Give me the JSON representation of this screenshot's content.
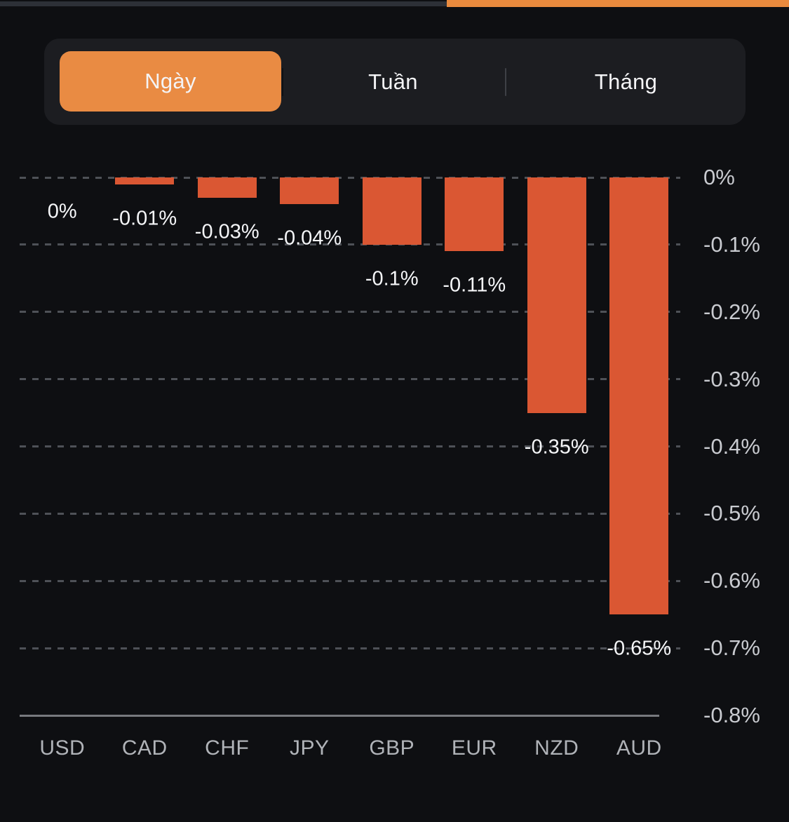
{
  "page_indicator": {
    "track_color": "#2D3037",
    "accent_color": "#E98A3E"
  },
  "tabs": {
    "items": [
      {
        "label": "Ngày",
        "active": true
      },
      {
        "label": "Tuần",
        "active": false
      },
      {
        "label": "Tháng",
        "active": false
      }
    ]
  },
  "colors": {
    "bg": "#0E0F12",
    "bar": "#DA5733",
    "grid": "#4E5157",
    "axis": "#77797E",
    "ylabel": "#C9CBD0",
    "xlabel": "#B0B3B8",
    "vlabel": "#F5F6F8",
    "tab-bg": "#1C1D21",
    "pill": "#E98B43",
    "tab-text": "#F4F4F6",
    "divider": "#3E4046",
    "top-gray": "#2D3037",
    "top-orange": "#E98A3E"
  },
  "chart_data": {
    "type": "bar",
    "title": "",
    "categories": [
      "USD",
      "CAD",
      "CHF",
      "JPY",
      "GBP",
      "EUR",
      "NZD",
      "AUD"
    ],
    "values": [
      0,
      -0.01,
      -0.03,
      -0.04,
      -0.1,
      -0.11,
      -0.35,
      -0.65
    ],
    "value_labels": [
      "0%",
      "-0.01%",
      "-0.03%",
      "-0.04%",
      "-0.1%",
      "-0.11%",
      "-0.35%",
      "-0.65%"
    ],
    "yticks": {
      "labels": [
        "0%",
        "-0.1%",
        "-0.2%",
        "-0.3%",
        "-0.4%",
        "-0.5%",
        "-0.6%",
        "-0.7%",
        "-0.8%"
      ],
      "values": [
        0,
        -0.1,
        -0.2,
        -0.3,
        -0.4,
        -0.5,
        -0.6,
        -0.7,
        -0.8
      ]
    },
    "ylim": [
      -0.8,
      0
    ],
    "grid": true,
    "legend": false,
    "bar_color": "#DA5733",
    "ytick_side": "right",
    "baseline": "top"
  }
}
